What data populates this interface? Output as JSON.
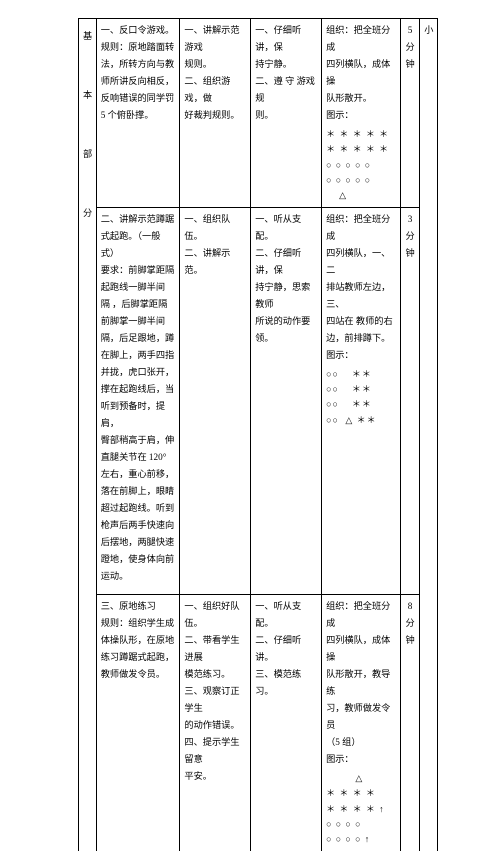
{
  "section_label": "基\n\n本\n\n部\n\n分",
  "time_unit_label": "小",
  "rows": [
    {
      "col2_blocks": [
        "一、反口令游戏。\n规则：原地踏面转\n法，所转方向与教\n师所讲反向相反，\n反响错误的同学罚\n5 个俯卧撑。",
        "二、讲解示范蹲踞\n式起跑。（一般式）\n要求：前脚掌距隔\n起跑线一脚半间\n隔 ，后脚掌距隔\n前脚掌一脚半间\n隔，后足跟地，蹲\n在脚上，两手四指\n并拢，虎口张开，\n撑在起跑线后，当\n听到预备时，提肩，\n臀部稍高于肩，伸\n直腿关节在 120°\n左右，重心前移，\n落在前脚上，眼睛\n超过起跑线。听到\n枪声后两手快速向\n后摆地，两腿快速\n蹬地，使身体向前\n运动。",
        "三、原地练习\n规则：组织学生成\n体操队形，在原地\n练习蹲踞式起跑，\n教师做发令员。"
      ],
      "col3_blocks": [
        "一、讲解示范 游戏\n规则。\n二、组织游戏，做\n好裁判规则。",
        "一、组织队伍。\n二、讲解示范。",
        "一、组织好队伍。\n二、带看学生进展\n模范练习。\n三、观察订正学生\n的动作错误。\n四、提示学生留意\n平安。"
      ],
      "col4_blocks": [
        "一、仔细听讲，保\n持宁静。\n二、遵 守 游戏 规\n则。",
        "一、听从支配。\n二、仔细听讲，保\n持宁静，思索教师\n所说的动作要领。",
        "一、听从支配。\n二、仔细听讲。\n三、模范练习。"
      ],
      "col5_blocks": [
        {
          "lines": [
            "组织：把全班分成",
            "四列横队，成体操",
            "队形散开。",
            "图示："
          ],
          "diagram": "＊ ＊ ＊ ＊ ＊\n＊ ＊ ＊ ＊ ＊\n○ ○ ○ ○ ○\n○ ○ ○ ○ ○\n    △"
        },
        {
          "lines": [
            "组织：把全班分成",
            "四列横队，一、二",
            "排站教师左边，三、",
            "四站在 教师的右",
            "边，前排蹲下。",
            "图示："
          ],
          "diagram": "○○    ＊＊\n○○    ＊＊\n○○    ＊＊\n○○  △ ＊＊"
        },
        {
          "lines": [
            "组织：把全班分成",
            "四列横队，成体操",
            "队形散开，教导练",
            "习，教师做发令员",
            "（5 组）",
            "图示："
          ],
          "diagram": "         △\n＊ ＊ ＊ ＊\n＊ ＊ ＊ ＊ ↑\n○ ○ ○ ○\n○ ○ ○ ○ ↑"
        }
      ],
      "times": [
        "5\n分\n钟",
        "3\n分\n钟",
        "8\n分\n钟"
      ]
    }
  ]
}
